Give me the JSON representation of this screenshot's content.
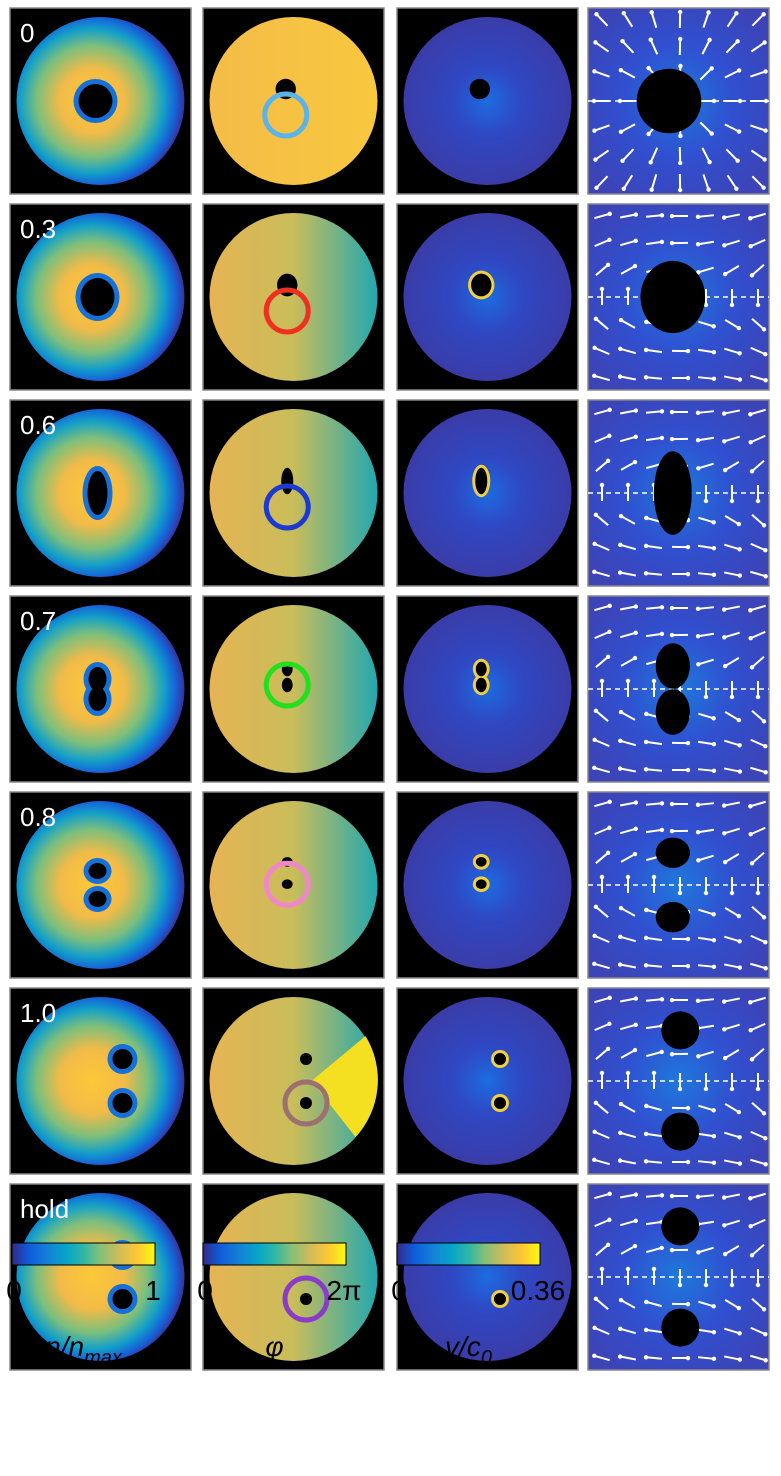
{
  "rows": [
    {
      "label": "0",
      "ring_color": "#5ab4ea"
    },
    {
      "label": "0.3",
      "ring_color": "#f0301e"
    },
    {
      "label": "0.6",
      "ring_color": "#1c3ad0"
    },
    {
      "label": "0.7",
      "ring_color": "#22e01e"
    },
    {
      "label": "0.8",
      "ring_color": "#f088c8"
    },
    {
      "label": "1.0",
      "ring_color": "#9a7070"
    },
    {
      "label": "hold",
      "ring_color": "#8a3cc8"
    }
  ],
  "colorbars": [
    {
      "min_label": "0",
      "max_label": "1",
      "symbol": "n/n",
      "subscript": "max"
    },
    {
      "min_label": "0",
      "max_label": "2π",
      "symbol": "φ"
    },
    {
      "min_label": "0",
      "max_label": "0.36",
      "symbol": "v/c",
      "subscript": "0"
    }
  ]
}
